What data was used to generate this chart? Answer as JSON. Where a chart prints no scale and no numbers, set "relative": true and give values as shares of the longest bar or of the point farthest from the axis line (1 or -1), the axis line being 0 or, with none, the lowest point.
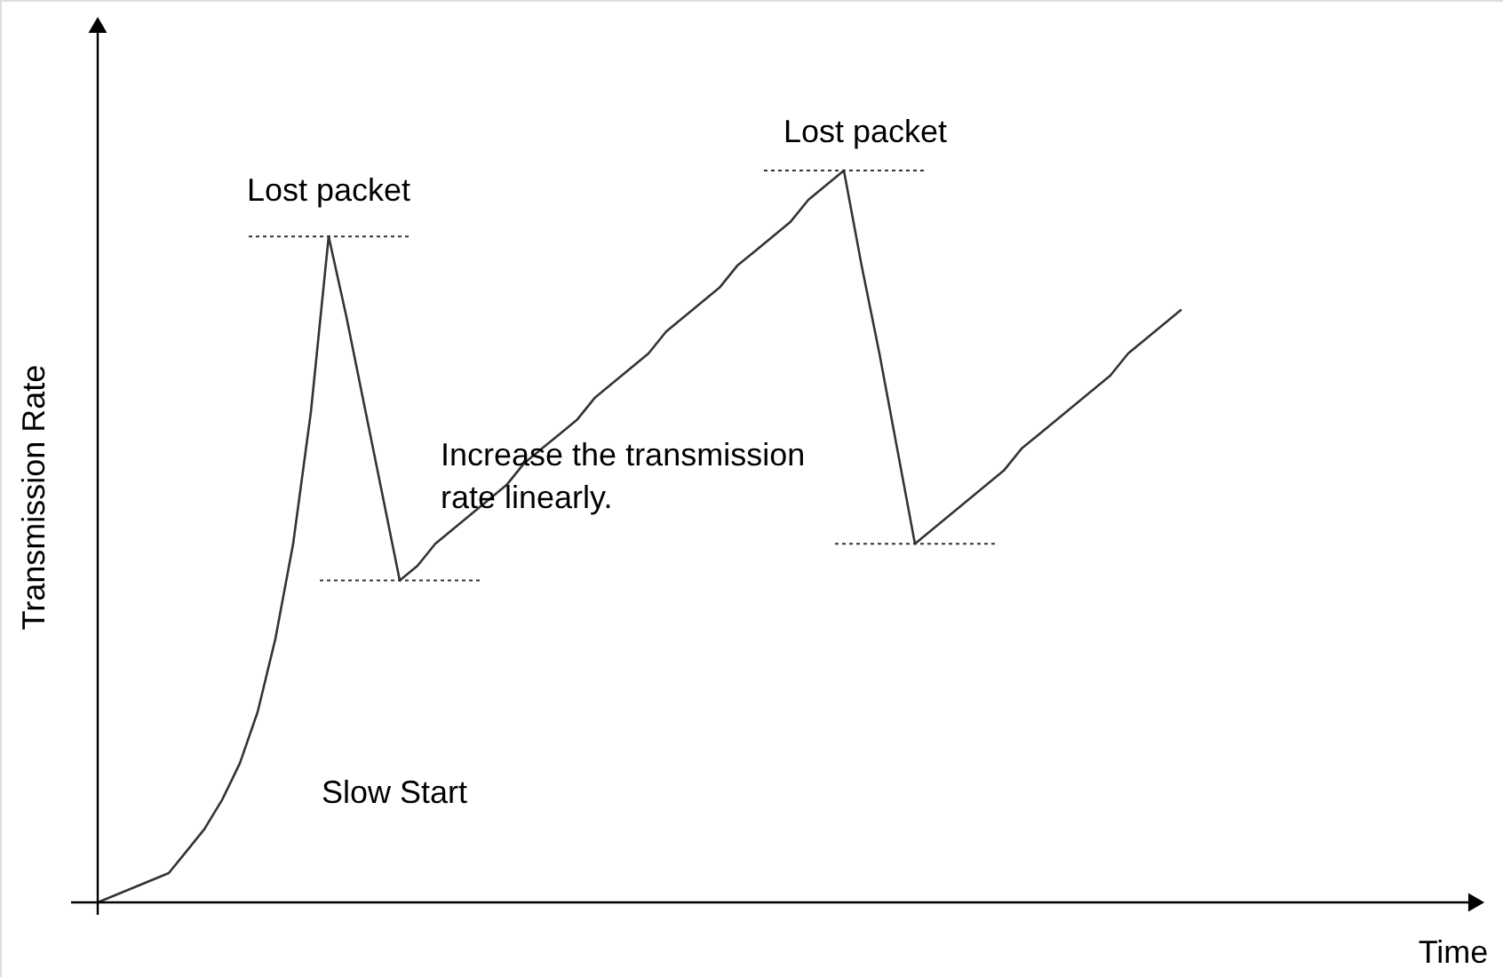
{
  "chart_data": {
    "type": "line",
    "relative": true,
    "xlabel": "Time",
    "ylabel": "Transmission Rate",
    "categories": [
      null,
      null,
      null,
      null,
      null,
      null,
      null,
      null,
      null,
      null,
      null,
      null,
      null,
      null,
      null,
      null,
      null,
      null,
      null,
      null,
      null,
      null,
      null,
      null,
      null,
      null,
      null,
      null,
      null,
      null,
      null,
      null,
      null,
      null,
      null,
      null,
      null,
      null,
      null,
      null,
      null,
      null,
      null,
      null,
      null,
      null,
      null,
      null,
      null,
      null,
      null,
      null,
      null,
      null,
      null,
      null,
      null,
      null,
      null,
      null,
      null,
      null,
      null,
      null,
      null,
      null,
      null,
      null,
      null,
      null,
      null,
      null,
      null,
      null,
      null,
      null,
      null,
      null
    ],
    "series": [
      {
        "color": "#333333",
        "values": [
          0,
          0.01,
          0.02,
          0.03,
          0.04,
          0.07,
          0.1,
          0.14,
          0.19,
          0.26,
          0.36,
          0.49,
          0.67,
          0.91,
          0.8,
          0.68,
          0.56,
          0.44,
          0.46,
          0.49,
          0.51,
          0.53,
          0.55,
          0.57,
          0.6,
          0.62,
          0.64,
          0.66,
          0.69,
          0.71,
          0.73,
          0.75,
          0.78,
          0.8,
          0.82,
          0.84,
          0.87,
          0.89,
          0.91,
          0.93,
          0.96,
          0.98,
          1.0,
          0.87,
          0.75,
          0.62,
          0.49,
          0.51,
          0.53,
          0.55,
          0.57,
          0.59,
          0.62,
          0.64,
          0.66,
          0.68,
          0.7,
          0.72,
          0.75,
          0.77,
          0.79,
          0.81,
          null,
          null,
          null,
          null,
          null,
          null,
          null,
          null,
          null,
          null,
          null,
          null,
          null,
          null,
          null,
          null
        ]
      }
    ],
    "ref_lines": [
      {
        "axis": "y",
        "value": 0.91,
        "color": "#333333",
        "line_style": "dotted"
      },
      {
        "axis": "y",
        "value": 0.44,
        "color": "#333333",
        "line_style": "dotted"
      },
      {
        "axis": "y",
        "value": 1.0,
        "color": "#333333",
        "line_style": "dotted"
      },
      {
        "axis": "y",
        "value": 0.49,
        "color": "#333333",
        "line_style": "dotted"
      }
    ],
    "annotations": [
      "Lost packet",
      "Lost packet",
      "Increase the transmission rate linearly.",
      "Slow Start"
    ],
    "grid": false,
    "legend": false,
    "marker": "none",
    "line_style": "solid"
  }
}
